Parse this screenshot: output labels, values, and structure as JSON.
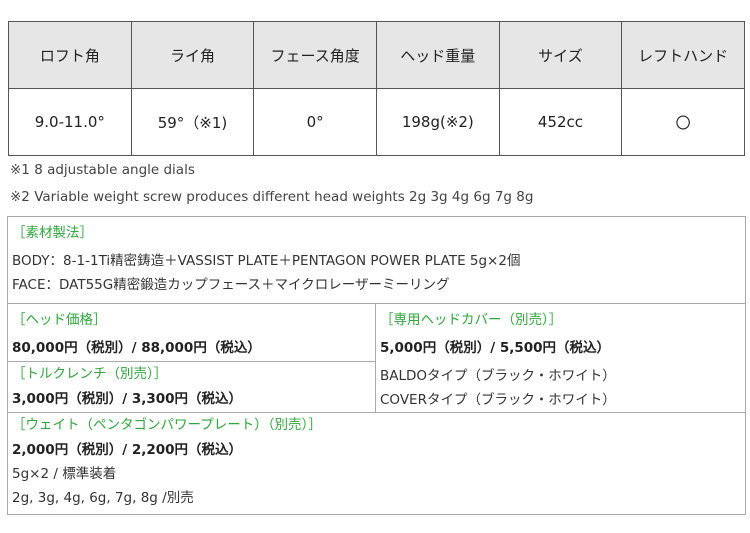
{
  "spec_table": {
    "headers": [
      "ロフト角",
      "ライ角",
      "フェース角度",
      "ヘッド重量",
      "サイズ",
      "レフトハンド"
    ],
    "values": [
      "9.0-11.0°",
      "59°（※1)",
      "0°",
      "198g(※2)",
      "452cc",
      "〇"
    ]
  },
  "notes": [
    "※1  8 adjustable angle dials",
    "※2 Variable weight screw produces different head weights 2g 3g 4g 6g 7g 8g"
  ],
  "accent_color": "#2ea83c",
  "materials": {
    "title": "［素材製法］",
    "lines": [
      "BODY：8-1-1Ti精密鋳造＋VASSIST PLATE＋PENTAGON POWER PLATE 5g×2個",
      "FACE：DAT55G精密鍛造カップフェース＋マイクロレーザーミーリング"
    ]
  },
  "head_price": {
    "title": "［ヘッド価格］",
    "price": "80,000円（税別）/ 88,000円（税込）"
  },
  "torque_wrench": {
    "title": "［トルクレンチ（別売）］",
    "price": "3,000円（税別）/ 3,300円（税込）"
  },
  "head_cover": {
    "title": "［専用ヘッドカバー（別売）］",
    "price": "5,000円（税別）/ 5,500円（税込）",
    "lines": [
      "BALDOタイプ（ブラック・ホワイト）",
      "COVERタイプ（ブラック・ホワイト）"
    ]
  },
  "weight": {
    "title": "［ウェイト（ペンタゴンパワープレート）（別売）］",
    "price": "2,000円（税別）/ 2,200円（税込）",
    "lines": [
      "5g×2 / 標準装着",
      "2g, 3g, 4g, 6g, 7g, 8g /別売"
    ]
  }
}
